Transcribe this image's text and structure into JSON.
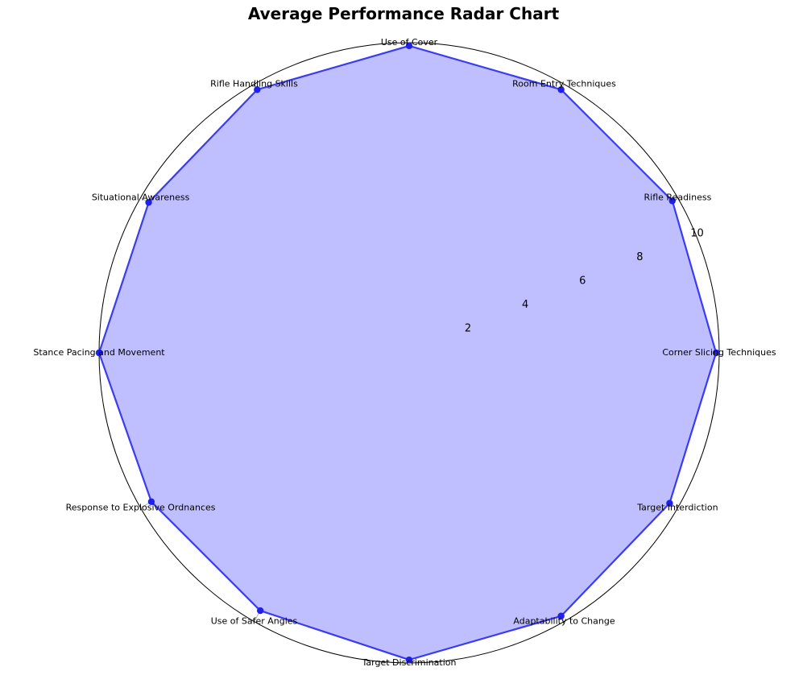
{
  "chart_data": {
    "type": "radar",
    "title": "Average Performance Radar Chart",
    "categories": [
      "Corner Slicing Techniques",
      "Rifle Readiness",
      "Room Entry Techniques",
      "Use of Cover",
      "Rifle Handling Skills",
      "Situational Awareness",
      "Stance Pacing and Movement",
      "Response to Explosive Ordnances",
      "Use of Safer Angles",
      "Target Discrimination",
      "Adaptability to Change",
      "Target Interdiction"
    ],
    "series": [
      {
        "values": [
          9.9,
          9.8,
          9.8,
          9.9,
          9.8,
          9.7,
          10.0,
          9.6,
          9.6,
          9.9,
          9.8,
          9.7
        ],
        "color": "#1f1ff0",
        "fill": "#bfbfff"
      }
    ],
    "rlim": [
      0,
      10
    ],
    "radial_ticks": [
      2,
      4,
      6,
      8,
      10
    ],
    "grid": true,
    "legend": false
  }
}
